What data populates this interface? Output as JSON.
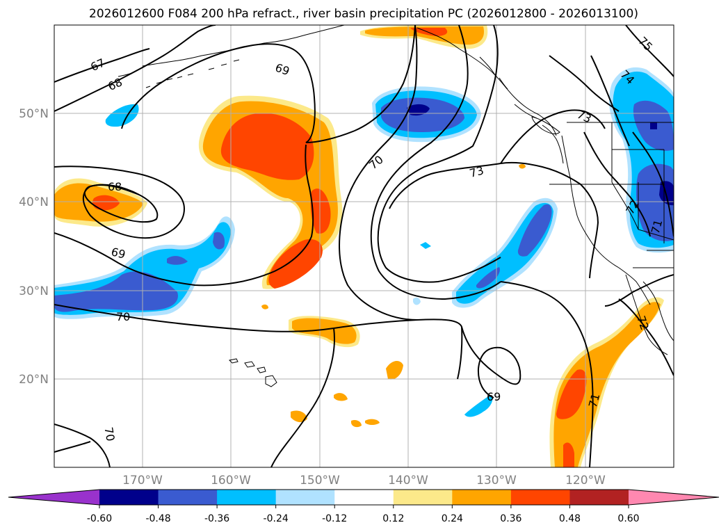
{
  "title": "2026012600 F084 200 hPa refract., river basin precipitation PC (2026012800 - 2026013100)",
  "lon_labels": [
    "170°W",
    "160°W",
    "150°W",
    "140°W",
    "130°W",
    "120°W"
  ],
  "lat_labels": [
    "50°N",
    "40°N",
    "30°N",
    "20°N"
  ],
  "map_extent": {
    "lon_min": -180,
    "lon_max": -110,
    "lat_min": 10,
    "lat_max": 60
  },
  "contour_labels": [
    "67",
    "68",
    "69",
    "70",
    "73",
    "73",
    "75",
    "74",
    "72",
    "71",
    "68",
    "69",
    "70",
    "72",
    "71",
    "69",
    "70"
  ],
  "colorbar": {
    "ticks": [
      "-0.60",
      "-0.48",
      "-0.36",
      "-0.24",
      "-0.12",
      "0.12",
      "0.24",
      "0.36",
      "0.48",
      "0.60"
    ],
    "colors": [
      "#9932cc",
      "#00008b",
      "#3a5bd0",
      "#00bfff",
      "#b0e2ff",
      "#ffffff",
      "#fce98a",
      "#ffa500",
      "#ff4500",
      "#b22222",
      "#ff88b0"
    ]
  },
  "fill_colors": {
    "light_blue": "#b0e2ff",
    "sky_blue": "#00bfff",
    "royal_blue": "#3a5bd0",
    "navy": "#00008b",
    "light_yellow": "#fce98a",
    "orange": "#ffa500",
    "red_orange": "#ff4500"
  }
}
